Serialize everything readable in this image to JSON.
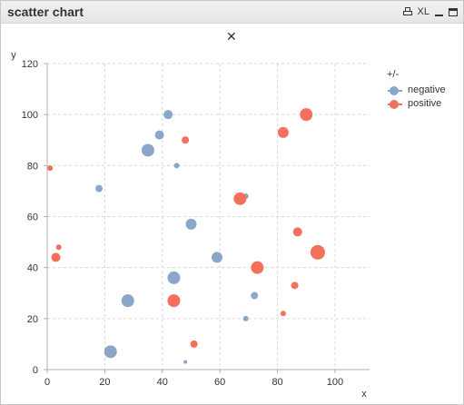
{
  "window": {
    "title": "scatter chart",
    "xl_label": "XL",
    "close_glyph": "✕"
  },
  "colors": {
    "negative": "#8aa6c8",
    "positive": "#f2705c",
    "grid": "#d7d7d7",
    "axis": "#b0b0b0",
    "text": "#333333"
  },
  "chart_data": {
    "type": "scatter",
    "xlabel": "x",
    "ylabel": "y",
    "xlim": [
      0,
      112
    ],
    "ylim": [
      0,
      120
    ],
    "x_ticks": [
      0,
      20,
      40,
      60,
      80,
      100
    ],
    "y_ticks": [
      0,
      20,
      40,
      60,
      80,
      100,
      120
    ],
    "grid": true,
    "grid_style": "dashed",
    "legend": {
      "title": "+/-",
      "position": "right"
    },
    "series": [
      {
        "name": "negative",
        "color": "#8aa6c8",
        "points": [
          {
            "x": 42,
            "y": 100,
            "size": 5
          },
          {
            "x": 39,
            "y": 92,
            "size": 5
          },
          {
            "x": 35,
            "y": 86,
            "size": 7
          },
          {
            "x": 45,
            "y": 80,
            "size": 3
          },
          {
            "x": 18,
            "y": 71,
            "size": 4
          },
          {
            "x": 69,
            "y": 68,
            "size": 3
          },
          {
            "x": 50,
            "y": 57,
            "size": 6
          },
          {
            "x": 59,
            "y": 44,
            "size": 6
          },
          {
            "x": 44,
            "y": 36,
            "size": 7
          },
          {
            "x": 72,
            "y": 29,
            "size": 4
          },
          {
            "x": 28,
            "y": 27,
            "size": 7
          },
          {
            "x": 69,
            "y": 20,
            "size": 3
          },
          {
            "x": 22,
            "y": 7,
            "size": 7
          },
          {
            "x": 48,
            "y": 3,
            "size": 2
          }
        ]
      },
      {
        "name": "positive",
        "color": "#f2705c",
        "points": [
          {
            "x": 90,
            "y": 100,
            "size": 7
          },
          {
            "x": 82,
            "y": 93,
            "size": 6
          },
          {
            "x": 48,
            "y": 90,
            "size": 4
          },
          {
            "x": 1,
            "y": 79,
            "size": 3
          },
          {
            "x": 67,
            "y": 67,
            "size": 7
          },
          {
            "x": 87,
            "y": 54,
            "size": 5
          },
          {
            "x": 4,
            "y": 48,
            "size": 3
          },
          {
            "x": 94,
            "y": 46,
            "size": 8
          },
          {
            "x": 3,
            "y": 44,
            "size": 5
          },
          {
            "x": 73,
            "y": 40,
            "size": 7
          },
          {
            "x": 86,
            "y": 33,
            "size": 4
          },
          {
            "x": 44,
            "y": 27,
            "size": 7
          },
          {
            "x": 82,
            "y": 22,
            "size": 3
          },
          {
            "x": 51,
            "y": 10,
            "size": 4
          }
        ]
      }
    ]
  }
}
